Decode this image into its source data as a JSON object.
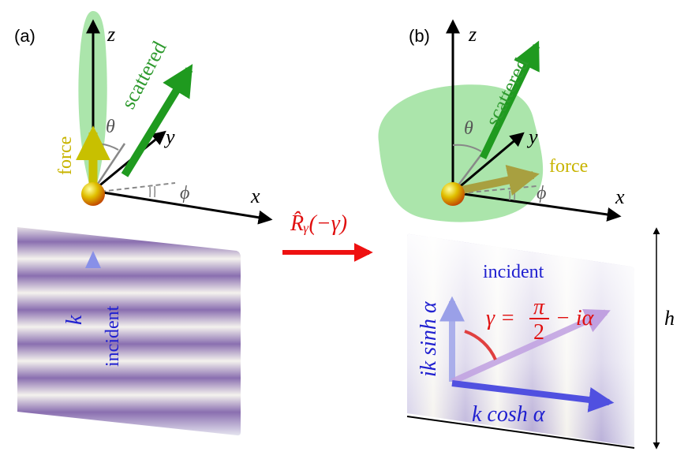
{
  "panels": {
    "a": {
      "label": "(a)",
      "axis_z": "z",
      "axis_y": "y",
      "axis_x": "x",
      "scattered": "scattered",
      "force": "force",
      "theta": "θ",
      "phi": "ϕ",
      "wave_k": "k",
      "incident": "incident"
    },
    "b": {
      "label": "(b)",
      "axis_z": "z",
      "axis_y": "y",
      "axis_x": "x",
      "scattered": "scattered",
      "force": "force",
      "theta": "θ",
      "phi": "ϕ",
      "incident": "incident",
      "gamma_lhs": "γ =",
      "gamma_num": "π",
      "gamma_den": "2",
      "gamma_rest": "− iα",
      "vertical_comp": "ik sinh α",
      "horizontal_comp": "k cosh α",
      "height": "h"
    }
  },
  "transform": {
    "label": "R̂ᵧ(−γ)"
  },
  "colors": {
    "green": "#2e9a2e",
    "yellow": "#c8b400",
    "blue": "#2020d0",
    "red": "#e01010",
    "stripe": "#8a6fb0"
  }
}
